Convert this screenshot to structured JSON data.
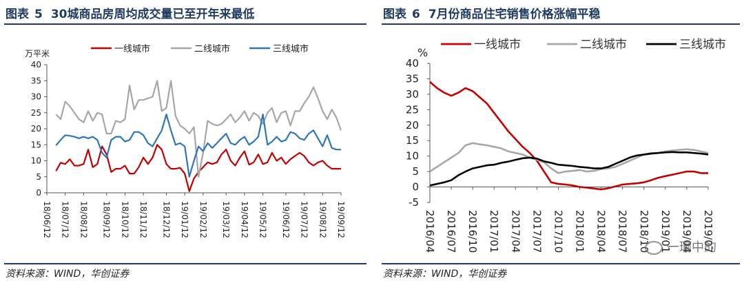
{
  "figure5": {
    "label": "图表",
    "number": "5",
    "title": "30城商品房周均成交量已至开年来最低",
    "source": "资料来源：WIND，华创证券",
    "chart_data": {
      "type": "line",
      "ylabel": "万平米",
      "ylim": [
        0,
        40
      ],
      "yticks": [
        0,
        5,
        10,
        15,
        20,
        25,
        30,
        35,
        40
      ],
      "x": [
        0,
        1,
        2,
        3,
        4,
        5,
        6,
        7,
        8,
        9,
        10,
        11,
        12,
        13,
        14,
        15,
        16,
        17,
        18,
        19,
        20,
        21,
        22,
        23,
        24,
        25,
        26,
        27,
        28,
        29,
        30,
        31,
        32,
        33,
        34,
        35,
        36,
        37,
        38,
        39,
        40,
        41,
        42,
        43,
        44,
        45,
        46,
        47,
        48,
        49,
        50,
        51,
        52,
        53,
        54,
        55,
        56,
        57,
        58,
        59,
        60,
        61,
        62
      ],
      "xlim": [
        -2,
        62
      ],
      "xticks": [
        -2,
        2,
        6,
        11,
        15,
        19,
        24,
        28,
        32,
        37,
        41,
        45,
        50,
        54,
        58,
        62
      ],
      "xtick_labels": [
        "18/06/12",
        "18/07/12",
        "18/08/12",
        "18/09/12",
        "18/10/12",
        "18/11/12",
        "18/12/12",
        "19/01/12",
        "19/02/12",
        "19/03/12",
        "19/04/12",
        "19/05/12",
        "19/06/12",
        "19/07/12",
        "19/08/12",
        "19/09/12"
      ],
      "series": [
        {
          "name": "一线城市",
          "color": "#c00000",
          "values": [
            6.8,
            9.4,
            9.0,
            10.5,
            8.5,
            8.5,
            9.0,
            13.5,
            8.0,
            9.0,
            14.5,
            12.0,
            6.5,
            7.5,
            7.5,
            8.5,
            6.0,
            6.0,
            8.0,
            11.0,
            9.0,
            11.0,
            15.0,
            13.5,
            9.0,
            7.5,
            7.5,
            7.8,
            6.0,
            0.5,
            4.5,
            6.5,
            8.0,
            9.5,
            9.0,
            9.5,
            12.0,
            13.5,
            10.0,
            8.5,
            11.0,
            13.0,
            8.8,
            9.5,
            12.0,
            9.0,
            9.5,
            12.5,
            10.0,
            11.0,
            9.0,
            10.5,
            11.5,
            12.5,
            11.5,
            9.5,
            8.5,
            9.5,
            10.0,
            8.5,
            7.5,
            7.5,
            7.5
          ]
        },
        {
          "name": "二线城市",
          "color": "#a6a6a6",
          "values": [
            24.5,
            23.0,
            28.5,
            27.0,
            25.0,
            23.0,
            22.0,
            25.5,
            22.5,
            25.0,
            24.5,
            18.5,
            18.5,
            22.5,
            22.0,
            23.0,
            33.5,
            26.0,
            29.0,
            29.0,
            29.5,
            30.0,
            35.0,
            25.5,
            26.5,
            35.0,
            24.0,
            21.0,
            20.0,
            18.5,
            20.5,
            5.0,
            12.5,
            22.5,
            21.5,
            21.0,
            21.5,
            23.0,
            24.5,
            22.0,
            23.5,
            25.5,
            22.5,
            25.0,
            24.0,
            21.5,
            25.0,
            26.5,
            22.0,
            25.0,
            25.5,
            21.0,
            25.5,
            25.5,
            28.0,
            30.0,
            33.0,
            29.5,
            25.5,
            23.0,
            26.0,
            23.5,
            19.5
          ]
        },
        {
          "name": "三线城市",
          "color": "#2e75b6",
          "values": [
            14.8,
            16.5,
            18.0,
            17.8,
            17.5,
            17.0,
            17.5,
            17.0,
            17.5,
            16.5,
            12.5,
            11.0,
            16.5,
            17.5,
            17.5,
            16.0,
            16.5,
            19.0,
            19.0,
            18.0,
            15.5,
            14.5,
            17.0,
            19.5,
            24.5,
            19.5,
            15.0,
            15.5,
            14.5,
            5.0,
            10.0,
            14.5,
            13.0,
            15.5,
            14.0,
            15.5,
            17.0,
            18.5,
            15.5,
            15.0,
            16.5,
            17.5,
            15.0,
            16.0,
            17.5,
            24.5,
            15.0,
            16.0,
            17.5,
            16.0,
            16.5,
            19.0,
            18.5,
            17.0,
            16.5,
            18.5,
            19.5,
            17.0,
            14.5,
            18.0,
            14.0,
            13.5,
            13.5
          ]
        }
      ]
    }
  },
  "figure6": {
    "label": "图表",
    "number": "6",
    "title": "7月份商品住宅销售价格涨幅平稳",
    "source": "资料来源：WIND，华创证券",
    "watermark": "一瑜中的",
    "chart_data": {
      "type": "line",
      "ylabel": "%",
      "ylim": [
        -5,
        40
      ],
      "yticks": [
        -5,
        0,
        5,
        10,
        15,
        20,
        25,
        30,
        35,
        40
      ],
      "x": [
        "2016/04",
        "2016/05",
        "2016/06",
        "2016/07",
        "2016/08",
        "2016/09",
        "2016/10",
        "2016/11",
        "2016/12",
        "2017/01",
        "2017/02",
        "2017/03",
        "2017/04",
        "2017/05",
        "2017/06",
        "2017/07",
        "2017/08",
        "2017/09",
        "2017/10",
        "2017/11",
        "2017/12",
        "2018/01",
        "2018/02",
        "2018/03",
        "2018/04",
        "2018/05",
        "2018/06",
        "2018/07",
        "2018/08",
        "2018/09",
        "2018/10",
        "2018/11",
        "2018/12",
        "2019/01",
        "2019/02",
        "2019/03",
        "2019/04",
        "2019/05",
        "2019/06",
        "2019/07"
      ],
      "xtick_labels": [
        "2016/04",
        "2016/07",
        "2016/10",
        "2017/01",
        "2017/04",
        "2017/07",
        "2017/10",
        "2018/01",
        "2018/04",
        "2018/07",
        "2018/10",
        "2019/01",
        "2019/04",
        "2019/07"
      ],
      "xtick_index": [
        0,
        3,
        6,
        9,
        12,
        15,
        18,
        21,
        24,
        27,
        30,
        33,
        36,
        39
      ],
      "series": [
        {
          "name": "一线城市",
          "color": "#c00000",
          "values": [
            34.0,
            32.0,
            30.5,
            29.5,
            30.5,
            32.0,
            31.0,
            29.0,
            27.0,
            24.0,
            21.0,
            18.0,
            15.5,
            13.0,
            11.0,
            8.5,
            5.0,
            1.5,
            1.0,
            0.8,
            0.5,
            0.0,
            -0.2,
            -0.5,
            -0.8,
            -0.4,
            0.2,
            0.8,
            1.0,
            1.2,
            1.5,
            2.2,
            3.0,
            3.5,
            4.0,
            4.5,
            5.0,
            5.0,
            4.5,
            4.5
          ]
        },
        {
          "name": "二线城市",
          "color": "#a6a6a6",
          "values": [
            5.0,
            6.5,
            8.0,
            9.5,
            11.0,
            13.5,
            14.2,
            13.8,
            13.5,
            13.0,
            12.5,
            11.5,
            11.0,
            10.5,
            9.5,
            8.8,
            8.0,
            6.0,
            4.5,
            5.0,
            5.2,
            5.5,
            5.0,
            5.2,
            5.8,
            6.0,
            6.5,
            7.5,
            8.5,
            9.5,
            10.5,
            11.0,
            11.0,
            11.5,
            11.8,
            12.0,
            12.2,
            12.0,
            11.5,
            11.0
          ]
        },
        {
          "name": "三线城市",
          "color": "#000000",
          "values": [
            0.5,
            1.0,
            1.5,
            2.2,
            3.8,
            5.0,
            6.0,
            6.5,
            7.0,
            7.2,
            7.8,
            8.2,
            8.8,
            9.3,
            9.5,
            9.2,
            8.3,
            7.8,
            7.2,
            7.0,
            6.8,
            6.5,
            6.3,
            6.0,
            6.0,
            6.5,
            7.5,
            8.5,
            9.5,
            10.2,
            10.5,
            10.8,
            11.0,
            11.2,
            11.3,
            11.2,
            11.2,
            11.0,
            10.8,
            10.5
          ]
        }
      ]
    }
  }
}
